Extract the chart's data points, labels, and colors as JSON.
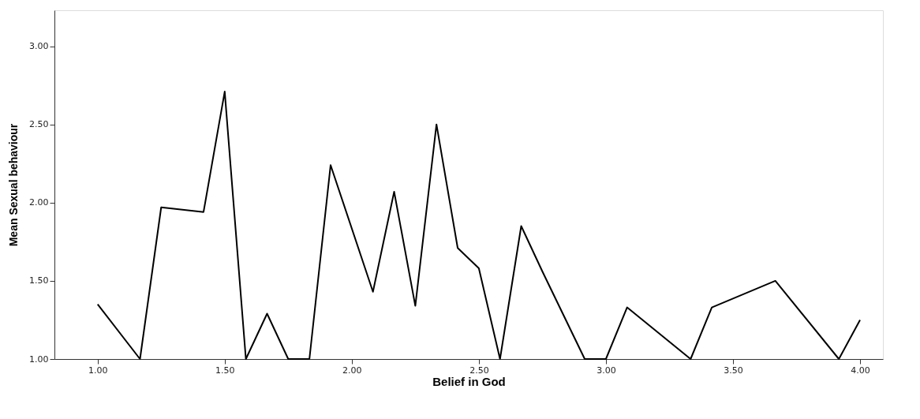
{
  "chart_data": {
    "type": "line",
    "xlabel": "Belief in God",
    "ylabel": "Mean Sexual behaviour",
    "x": [
      1.0,
      1.1667,
      1.25,
      1.4167,
      1.5,
      1.5833,
      1.6667,
      1.75,
      1.8333,
      1.9167,
      2.0833,
      2.1667,
      2.25,
      2.3333,
      2.4167,
      2.5,
      2.5833,
      2.6667,
      2.75,
      2.9167,
      3.0,
      3.0833,
      3.3333,
      3.4167,
      3.6667,
      3.9167,
      4.0
    ],
    "series": [
      {
        "color": "#000000",
        "values": [
          1.35,
          1.0,
          1.97,
          1.94,
          2.71,
          1.0,
          1.29,
          1.0,
          1.0,
          2.24,
          1.43,
          2.07,
          1.34,
          2.5,
          1.71,
          1.58,
          1.0,
          1.85,
          1.56,
          1.0,
          1.0,
          1.33,
          1.0,
          1.33,
          1.5,
          1.0,
          1.25
        ]
      }
    ],
    "xlim": [
      0.83,
      4.09
    ],
    "ylim": [
      1.0,
      3.23
    ],
    "xticks": [
      {
        "value": 1,
        "label": "1.00"
      },
      {
        "value": 1.5,
        "label": "1.50"
      },
      {
        "value": 2,
        "label": "2.00"
      },
      {
        "value": 2.5,
        "label": "2.50"
      },
      {
        "value": 3,
        "label": "3.00"
      },
      {
        "value": 3.5,
        "label": "3.50"
      },
      {
        "value": 4,
        "label": "4.00"
      }
    ],
    "yticks": [
      {
        "value": 1,
        "label": "1.00"
      },
      {
        "value": 1.5,
        "label": "1.50"
      },
      {
        "value": 2,
        "label": "2.00"
      },
      {
        "value": 2.5,
        "label": "2.50"
      },
      {
        "value": 3,
        "label": "3.00"
      }
    ],
    "grid": false,
    "marker": "none",
    "line_style": "solid"
  }
}
